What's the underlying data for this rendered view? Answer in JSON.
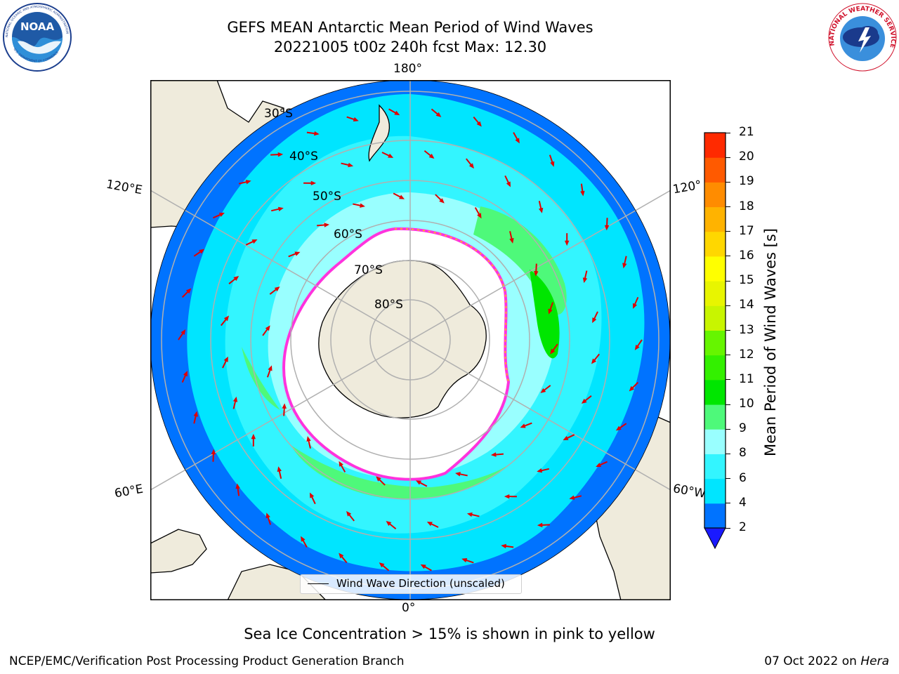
{
  "header": {
    "title_line1": "GEFS MEAN Antarctic Mean Period of Wind Waves",
    "title_line2": "20221005 t00z 240h fcst   Max: 12.30"
  },
  "logos": {
    "noaa_text": "NOAA",
    "noaa_ring_text": "NATIONAL OCEANIC AND ATMOSPHERIC ADMINISTRATION",
    "noaa_ring_text_bottom": "U.S. DEPARTMENT OF COMMERCE",
    "nws_ring_text": "NATIONAL WEATHER SERVICE"
  },
  "map": {
    "longitude_labels": {
      "top": "180°",
      "bottom": "0°",
      "left_upper": "120°E",
      "left_lower": "60°E",
      "right_upper": "120°",
      "right_lower": "60°W"
    },
    "latitude_labels": [
      "30°S",
      "40°S",
      "50°S",
      "60°S",
      "70°S",
      "80°S"
    ],
    "legend_label": "Wind Wave Direction (unscaled)"
  },
  "colorbar": {
    "label": "Mean Period of Wind Waves [s]",
    "ticks": [
      "2",
      "4",
      "6",
      "8",
      "9",
      "10",
      "11",
      "12",
      "13",
      "14",
      "15",
      "16",
      "17",
      "18",
      "19",
      "20",
      "21"
    ],
    "colors": [
      "#0073ff",
      "#00e5ff",
      "#33f5ff",
      "#99ffff",
      "#4ef97a",
      "#00e600",
      "#33f000",
      "#66f500",
      "#c8f500",
      "#e8f500",
      "#ffff00",
      "#ffd700",
      "#ffb300",
      "#ff8c00",
      "#ff5a00",
      "#ff2a00",
      "#ff0000"
    ],
    "extend_color": "#1a1aff"
  },
  "ice_note": "Sea Ice Concentration > 15% is shown in pink to yellow",
  "footer": {
    "left": "NCEP/EMC/Verification Post Processing Product Generation Branch",
    "right_date": "07 Oct 2022 on",
    "right_host": "Hera"
  }
}
